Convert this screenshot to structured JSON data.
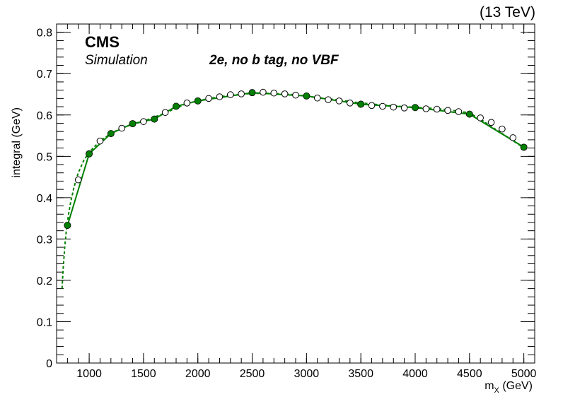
{
  "chart_data": {
    "type": "line",
    "energy_label": "(13 TeV)",
    "experiment": "CMS",
    "experiment_sub": "Simulation",
    "category": "2e, no b tag, no VBF",
    "xlabel_main": "m",
    "xlabel_sub": "X",
    "xlabel_unit": " (GeV)",
    "ylabel": "integral (GeV)",
    "xlim": [
      700,
      5100
    ],
    "ylim": [
      0,
      0.82
    ],
    "x_ticks": [
      1000,
      1500,
      2000,
      2500,
      3000,
      3500,
      4000,
      4500,
      5000
    ],
    "y_ticks": [
      0,
      0.1,
      0.2,
      0.3,
      0.4,
      0.5,
      0.6,
      0.7,
      0.8
    ],
    "y_tick_labels": [
      "0",
      "0.1",
      "0.2",
      "0.3",
      "0.4",
      "0.5",
      "0.6",
      "0.7",
      "0.8"
    ],
    "colors": {
      "fit": "#008000",
      "filled": "#008000",
      "open": "#000000"
    },
    "series": [
      {
        "role": "open-markers",
        "x": [
          900,
          1100,
          1300,
          1500,
          1700,
          1900,
          2100,
          2200,
          2300,
          2400,
          2600,
          2700,
          2800,
          2900,
          3100,
          3200,
          3300,
          3400,
          3600,
          3700,
          3800,
          3900,
          4100,
          4200,
          4300,
          4400,
          4600,
          4700,
          4800,
          4900
        ],
        "y": [
          0.443,
          0.537,
          0.568,
          0.584,
          0.606,
          0.629,
          0.64,
          0.644,
          0.649,
          0.651,
          0.655,
          0.653,
          0.651,
          0.648,
          0.641,
          0.637,
          0.634,
          0.629,
          0.623,
          0.621,
          0.619,
          0.617,
          0.615,
          0.614,
          0.611,
          0.608,
          0.593,
          0.582,
          0.566,
          0.545
        ]
      },
      {
        "role": "filled-markers",
        "x": [
          800,
          1000,
          1200,
          1400,
          1600,
          1800,
          2000,
          2500,
          3000,
          3500,
          4000,
          4500,
          5000
        ],
        "y": [
          0.333,
          0.506,
          0.555,
          0.579,
          0.59,
          0.621,
          0.634,
          0.654,
          0.646,
          0.626,
          0.618,
          0.602,
          0.522
        ]
      },
      {
        "role": "dashed-fit",
        "x": [
          750,
          760,
          775,
          790,
          810,
          830,
          860,
          900,
          950,
          1000,
          1100,
          1200,
          1300,
          1500,
          1700,
          1900,
          2100,
          2300,
          2500,
          2700,
          2900,
          3100,
          3300,
          3500,
          3700,
          3900,
          4100,
          4300,
          4500,
          4600,
          4700,
          4800,
          4900,
          5000
        ],
        "y": [
          0.18,
          0.225,
          0.28,
          0.32,
          0.36,
          0.39,
          0.425,
          0.46,
          0.49,
          0.51,
          0.537,
          0.555,
          0.569,
          0.585,
          0.605,
          0.628,
          0.64,
          0.648,
          0.652,
          0.652,
          0.649,
          0.642,
          0.636,
          0.629,
          0.624,
          0.62,
          0.617,
          0.613,
          0.605,
          0.59,
          0.572,
          0.555,
          0.538,
          0.52
        ]
      }
    ]
  }
}
